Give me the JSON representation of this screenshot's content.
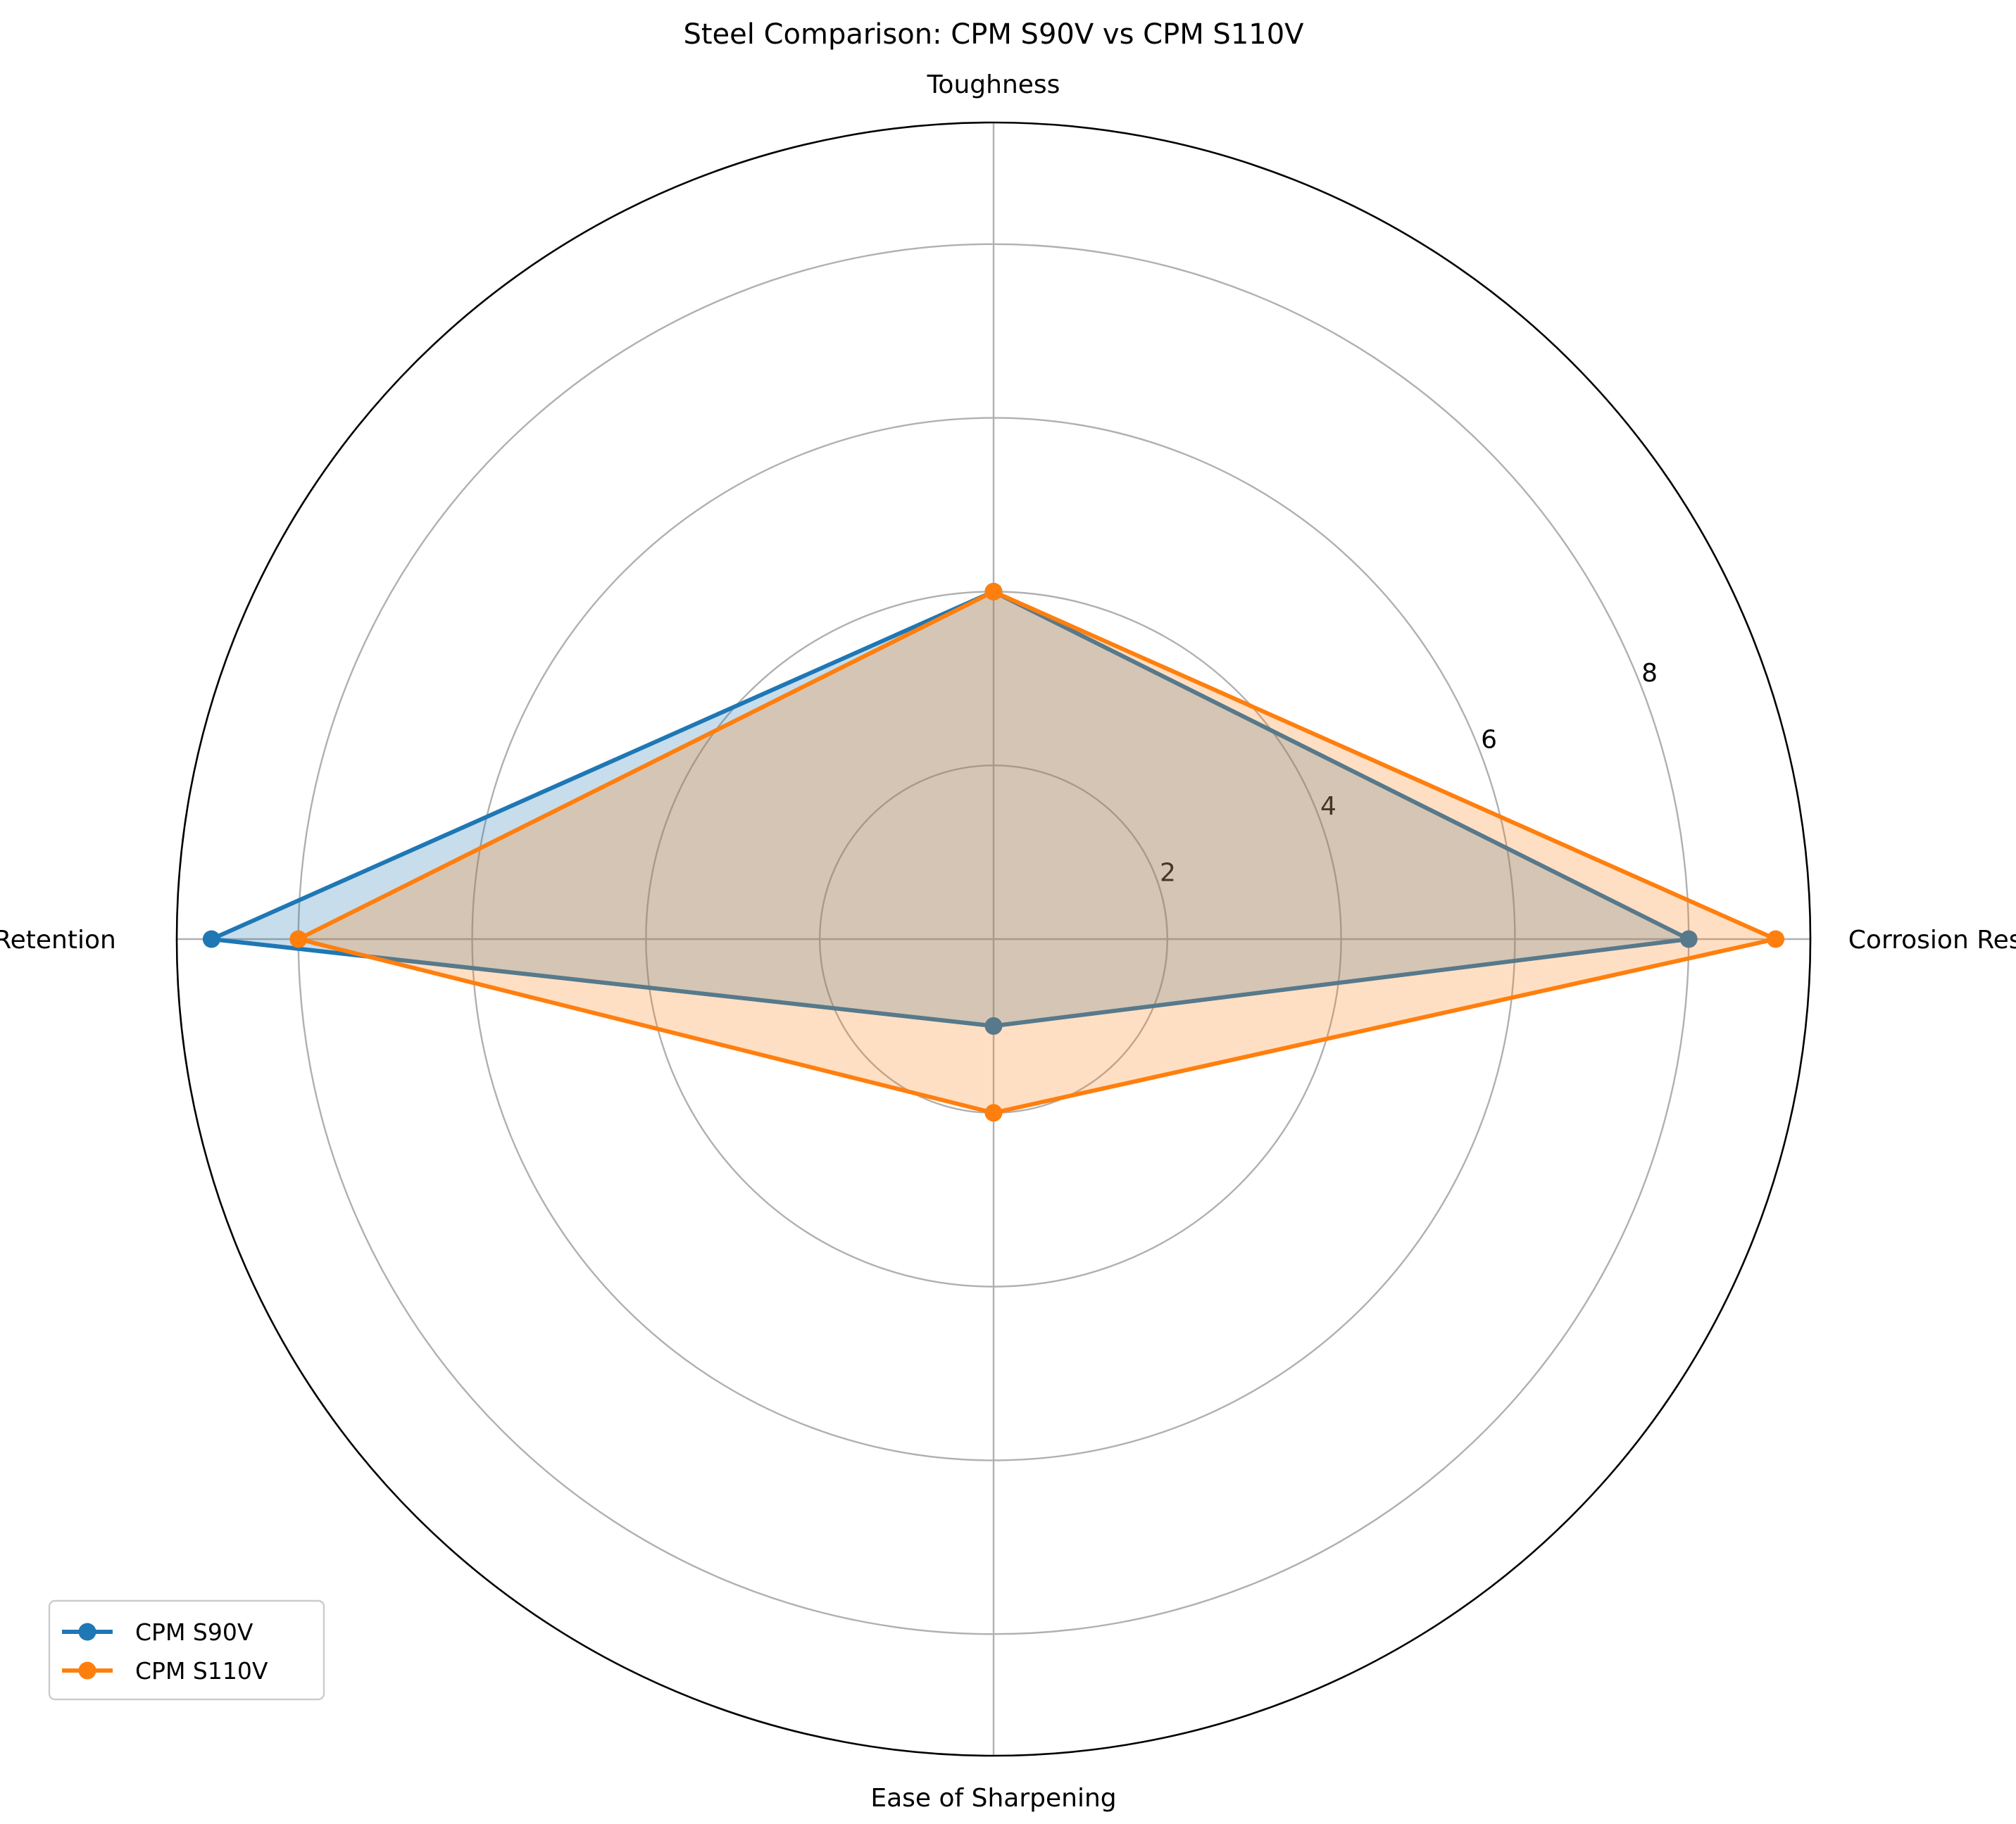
{
  "chart_data": {
    "type": "radar",
    "title": "Steel Comparison: CPM S90V vs CPM S110V",
    "categories": [
      "Corrosion Resistance",
      "Toughness",
      "Edge Retention",
      "Ease of Sharpening"
    ],
    "series": [
      {
        "name": "CPM S90V",
        "values": [
          8,
          4,
          9,
          1
        ],
        "color": "#1f77b4"
      },
      {
        "name": "CPM S110V",
        "values": [
          9,
          4,
          8,
          2
        ],
        "color": "#ff7f0e"
      }
    ],
    "rlim": [
      0,
      9.4
    ],
    "rticks": [
      2,
      4,
      6,
      8
    ],
    "rtick_labels": [
      "2",
      "4",
      "6",
      "8"
    ],
    "grid": true,
    "legend_position": "lower-left"
  }
}
